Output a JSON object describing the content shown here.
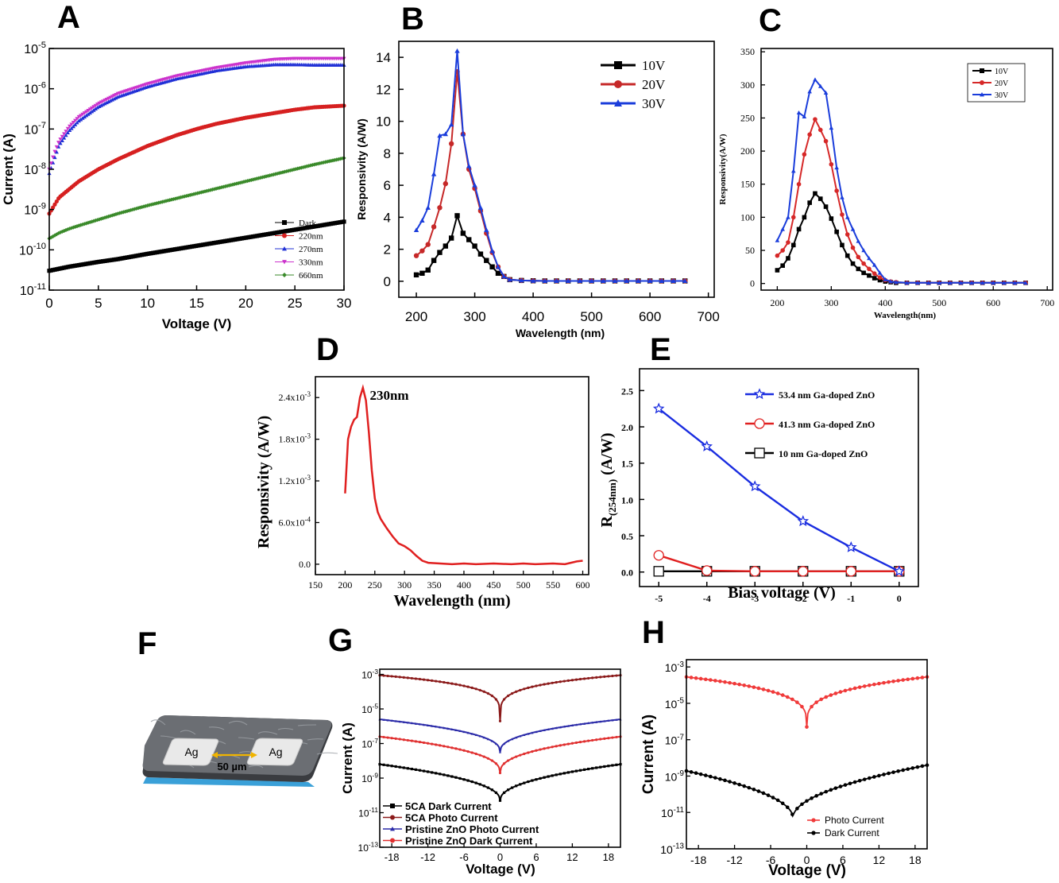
{
  "panel_labels": [
    "A",
    "B",
    "C",
    "D",
    "E",
    "F",
    "G",
    "H"
  ],
  "chart_data": [
    {
      "id": "A",
      "type": "scatter",
      "xlabel": "Voltage (V)",
      "ylabel": "Current (A)",
      "xlim": [
        0,
        30
      ],
      "ylim_log10": [
        -11,
        -5
      ],
      "y_log": true,
      "xticks": [
        "0",
        "5",
        "10",
        "15",
        "20",
        "25",
        "30"
      ],
      "yticks": [
        {
          "base": "10",
          "exp": "-11"
        },
        {
          "base": "10",
          "exp": "-10"
        },
        {
          "base": "10",
          "exp": "-9"
        },
        {
          "base": "10",
          "exp": "-8"
        },
        {
          "base": "10",
          "exp": "-7"
        },
        {
          "base": "10",
          "exp": "-6"
        },
        {
          "base": "10",
          "exp": "-5"
        }
      ],
      "legend_position": "bottom-right",
      "series": [
        {
          "name": "Dark",
          "color": "#000000",
          "marker": "square",
          "x": [
            0,
            1,
            2,
            3,
            5,
            7,
            10,
            13,
            15,
            17,
            20,
            23,
            25,
            27,
            30
          ],
          "log10y": [
            -10.52,
            -10.47,
            -10.42,
            -10.38,
            -10.3,
            -10.23,
            -10.1,
            -9.98,
            -9.9,
            -9.82,
            -9.7,
            -9.58,
            -9.5,
            -9.42,
            -9.3
          ]
        },
        {
          "name": "220nm",
          "color": "#d62020",
          "marker": "circle",
          "x": [
            0,
            0.5,
            1,
            2,
            3,
            5,
            7,
            10,
            13,
            15,
            17,
            20,
            23,
            25,
            27,
            30
          ],
          "log10y": [
            -9.1,
            -8.9,
            -8.7,
            -8.5,
            -8.3,
            -8.0,
            -7.75,
            -7.42,
            -7.15,
            -7.0,
            -6.87,
            -6.72,
            -6.6,
            -6.52,
            -6.46,
            -6.42
          ]
        },
        {
          "name": "270nm",
          "color": "#2030d6",
          "marker": "triangle-up",
          "x": [
            0,
            0.5,
            1,
            2,
            3,
            5,
            7,
            10,
            13,
            15,
            17,
            20,
            23,
            25,
            27,
            30
          ],
          "log10y": [
            -8.1,
            -7.75,
            -7.4,
            -7.05,
            -6.8,
            -6.45,
            -6.2,
            -5.95,
            -5.75,
            -5.65,
            -5.55,
            -5.45,
            -5.4,
            -5.4,
            -5.41,
            -5.41
          ]
        },
        {
          "name": "330nm",
          "color": "#cc33cc",
          "marker": "triangle-down",
          "x": [
            0,
            0.5,
            1,
            2,
            3,
            5,
            7,
            10,
            13,
            15,
            17,
            20,
            23,
            25,
            27,
            30
          ],
          "log10y": [
            -8.0,
            -7.6,
            -7.3,
            -6.95,
            -6.7,
            -6.37,
            -6.12,
            -5.88,
            -5.68,
            -5.58,
            -5.48,
            -5.36,
            -5.27,
            -5.25,
            -5.25,
            -5.25
          ]
        },
        {
          "name": "660nm",
          "color": "#3a8a2a",
          "marker": "diamond",
          "x": [
            0,
            1,
            2,
            3,
            5,
            7,
            10,
            13,
            15,
            17,
            20,
            23,
            25,
            27,
            30
          ],
          "log10y": [
            -9.72,
            -9.58,
            -9.48,
            -9.4,
            -9.25,
            -9.1,
            -8.9,
            -8.72,
            -8.6,
            -8.48,
            -8.3,
            -8.12,
            -8.0,
            -7.88,
            -7.72
          ]
        }
      ]
    },
    {
      "id": "B",
      "type": "line",
      "xlabel": "Wavelength (nm)",
      "ylabel": "Responsivity (A/W)",
      "xlim": [
        170,
        710
      ],
      "ylim": [
        -1,
        15
      ],
      "xticks": [
        200,
        300,
        400,
        500,
        600,
        700
      ],
      "yticks": [
        0,
        2,
        4,
        6,
        8,
        10,
        12,
        14
      ],
      "legend_position": "top-right",
      "x": [
        200,
        210,
        220,
        230,
        240,
        250,
        260,
        270,
        280,
        290,
        300,
        310,
        320,
        330,
        340,
        350,
        360,
        380,
        400,
        420,
        440,
        460,
        480,
        500,
        520,
        540,
        560,
        580,
        600,
        620,
        640,
        660
      ],
      "series": [
        {
          "name": "10V",
          "color": "#000000",
          "marker": "square",
          "values": [
            0.4,
            0.5,
            0.7,
            1.3,
            1.8,
            2.2,
            2.7,
            4.1,
            3.0,
            2.6,
            2.2,
            1.7,
            1.3,
            0.9,
            0.5,
            0.3,
            0.1,
            0.05,
            0.03,
            0.02,
            0.02,
            0.02,
            0.02,
            0.02,
            0.02,
            0.02,
            0.02,
            0.02,
            0.02,
            0.02,
            0.02,
            0.02
          ]
        },
        {
          "name": "20V",
          "color": "#c62828",
          "marker": "circle",
          "values": [
            1.6,
            1.9,
            2.3,
            3.4,
            4.6,
            6.1,
            8.6,
            13.1,
            9.2,
            7.0,
            5.8,
            4.4,
            3.0,
            1.8,
            0.9,
            0.3,
            0.1,
            0.05,
            0.03,
            0.02,
            0.02,
            0.02,
            0.02,
            0.02,
            0.02,
            0.02,
            0.02,
            0.02,
            0.02,
            0.02,
            0.02,
            0.02
          ]
        },
        {
          "name": "30V",
          "color": "#1a3ddb",
          "marker": "triangle-up",
          "values": [
            3.2,
            3.8,
            4.6,
            6.7,
            9.1,
            9.2,
            9.8,
            14.4,
            9.2,
            7.2,
            6.0,
            4.6,
            3.2,
            1.9,
            0.9,
            0.3,
            0.1,
            0.05,
            0.03,
            0.02,
            0.02,
            0.02,
            0.02,
            0.02,
            0.02,
            0.02,
            0.02,
            0.02,
            0.02,
            0.02,
            0.02,
            0.02
          ]
        }
      ]
    },
    {
      "id": "C",
      "type": "line",
      "xlabel": "Wavelength(nm)",
      "ylabel": "Responsivity(A/W)",
      "xlim": [
        170,
        710
      ],
      "ylim": [
        -10,
        355
      ],
      "xticks": [
        200,
        300,
        400,
        500,
        600,
        700
      ],
      "yticks": [
        0,
        50,
        100,
        150,
        200,
        250,
        300,
        350
      ],
      "legend_position": "top-right",
      "x": [
        200,
        210,
        220,
        230,
        240,
        250,
        260,
        270,
        280,
        290,
        300,
        310,
        320,
        330,
        340,
        350,
        360,
        370,
        380,
        390,
        400,
        410,
        420,
        440,
        460,
        480,
        500,
        520,
        540,
        560,
        580,
        600,
        620,
        640,
        660
      ],
      "series": [
        {
          "name": "10V",
          "color": "#000000",
          "marker": "square",
          "values": [
            20,
            27,
            38,
            58,
            82,
            100,
            122,
            136,
            128,
            116,
            98,
            78,
            58,
            42,
            30,
            22,
            16,
            12,
            8,
            5,
            3,
            2,
            1,
            1,
            1,
            1,
            1,
            1,
            1,
            1,
            1,
            1,
            1,
            1,
            1
          ]
        },
        {
          "name": "20V",
          "color": "#d62828",
          "marker": "circle",
          "values": [
            42,
            50,
            62,
            100,
            150,
            195,
            225,
            248,
            232,
            215,
            180,
            140,
            104,
            74,
            54,
            40,
            30,
            22,
            15,
            9,
            5,
            3,
            2,
            1,
            1,
            1,
            1,
            1,
            1,
            1,
            1,
            1,
            1,
            1,
            1
          ]
        },
        {
          "name": "30V",
          "color": "#1a3ddb",
          "marker": "triangle-up",
          "values": [
            65,
            82,
            100,
            170,
            258,
            252,
            290,
            308,
            298,
            288,
            235,
            175,
            130,
            100,
            82,
            64,
            50,
            38,
            28,
            16,
            6,
            3,
            2,
            1,
            1,
            1,
            1,
            1,
            1,
            1,
            1,
            1,
            1,
            1,
            1
          ]
        }
      ]
    },
    {
      "id": "D",
      "type": "line",
      "xlabel": "Wavelength (nm)",
      "ylabel": "Responsivity (A/W)",
      "xlim": [
        150,
        610
      ],
      "ylim": [
        -0.00015,
        0.0027
      ],
      "xticks": [
        150,
        200,
        250,
        300,
        350,
        400,
        450,
        500,
        550,
        600
      ],
      "yticks": [
        0,
        0.0006,
        0.0012,
        0.0018,
        0.0024
      ],
      "ytick_labels": [
        "0.0",
        "6.0x10",
        "1.2x10",
        "1.8x10",
        "2.4x10"
      ],
      "ytick_exps": [
        "",
        "-4",
        "-3",
        "-3",
        "-3"
      ],
      "annotation": "230nm",
      "series": [
        {
          "color": "#e02020",
          "x": [
            200,
            205,
            210,
            215,
            220,
            225,
            230,
            235,
            240,
            245,
            250,
            255,
            260,
            270,
            280,
            290,
            300,
            310,
            320,
            330,
            340,
            360,
            380,
            400,
            420,
            450,
            480,
            500,
            520,
            550,
            570,
            580,
            590,
            600
          ],
          "values": [
            0.00102,
            0.0018,
            0.00198,
            0.00208,
            0.00212,
            0.0024,
            0.00254,
            0.00236,
            0.0019,
            0.00135,
            0.00095,
            0.00075,
            0.00065,
            0.00052,
            0.0004,
            0.0003,
            0.00026,
            0.0002,
            0.00012,
            5e-05,
            2e-05,
            1e-05,
            0.0,
            1e-05,
            0.0,
            1e-05,
            0.0,
            1e-05,
            0.0,
            1e-05,
            0.0,
            2e-05,
            4e-05,
            5e-05
          ]
        }
      ]
    },
    {
      "id": "E",
      "type": "line",
      "xlabel": "Bias voltage (V)",
      "ylabel_main": "R",
      "ylabel_sub": "(254nm)",
      "ylabel_unit": "(A/W)",
      "xlim": [
        -5.4,
        0.4
      ],
      "ylim": [
        -0.2,
        2.8
      ],
      "xticks": [
        -5,
        -4,
        -3,
        -2,
        -1,
        0
      ],
      "yticks": [
        0.0,
        0.5,
        1.0,
        1.5,
        2.0,
        2.5
      ],
      "legend_position": "top-right",
      "x": [
        -5,
        -4,
        -3,
        -2,
        -1,
        0
      ],
      "series": [
        {
          "name": "53.4 nm Ga-doped ZnO",
          "color": "#1a2de0",
          "marker": "star",
          "values": [
            2.25,
            1.73,
            1.18,
            0.7,
            0.34,
            0.01
          ]
        },
        {
          "name": "41.3 nm Ga-doped ZnO",
          "color": "#e02020",
          "marker": "circle-open",
          "values": [
            0.23,
            0.02,
            0.01,
            0.01,
            0.01,
            0.01
          ]
        },
        {
          "name": "10 nm Ga-doped ZnO",
          "color": "#000000",
          "marker": "square-open",
          "values": [
            0.01,
            0.01,
            0.01,
            0.01,
            0.01,
            0.01
          ]
        }
      ]
    },
    {
      "id": "G",
      "type": "line",
      "xlabel": "Voltage (V)",
      "ylabel": "Current (A)",
      "xlim": [
        -20,
        20
      ],
      "ylim_log10": [
        -13,
        -2.7
      ],
      "y_log": true,
      "xticks": [
        "-18",
        "-12",
        "-6",
        "0",
        "6",
        "12",
        "18"
      ],
      "yticks": [
        {
          "base": "10",
          "exp": "-13"
        },
        {
          "base": "10",
          "exp": "-11"
        },
        {
          "base": "10",
          "exp": "-9"
        },
        {
          "base": "10",
          "exp": "-7"
        },
        {
          "base": "10",
          "exp": "-5"
        },
        {
          "base": "10",
          "exp": "-3"
        }
      ],
      "legend_position": "bottom-left",
      "series": [
        {
          "name": "5CA Dark Current",
          "color": "#000000",
          "marker": "square",
          "log10y_at_ends": -8.2,
          "log10y_at_center": -10.3,
          "sharpness": 0.45
        },
        {
          "name": "5CA Photo Current",
          "color": "#8b1a1a",
          "marker": "circle",
          "log10y_at_ends": -3.05,
          "log10y_at_center": -5.7,
          "sharpness": 0.22
        },
        {
          "name": "Pristine ZnO Photo Current",
          "color": "#2a2aa8",
          "marker": "triangle-up",
          "log10y_at_ends": -5.6,
          "log10y_at_center": -7.5,
          "sharpness": 0.4
        },
        {
          "name": "Pristine ZnO Dark Current",
          "color": "#e03030",
          "marker": "circle",
          "log10y_at_ends": -6.6,
          "log10y_at_center": -8.7,
          "sharpness": 0.4
        }
      ]
    },
    {
      "id": "H",
      "type": "line",
      "xlabel": "Voltage (V)",
      "ylabel": "Current (A)",
      "xlim": [
        -20,
        20
      ],
      "ylim_log10": [
        -13,
        -2.6
      ],
      "y_log": true,
      "xticks": [
        "-18",
        "-12",
        "-6",
        "0",
        "6",
        "12",
        "18"
      ],
      "yticks": [
        {
          "base": "10",
          "exp": "-13"
        },
        {
          "base": "10",
          "exp": "-11"
        },
        {
          "base": "10",
          "exp": "-9"
        },
        {
          "base": "10",
          "exp": "-7"
        },
        {
          "base": "10",
          "exp": "-5"
        },
        {
          "base": "10",
          "exp": "-3"
        }
      ],
      "legend_position": "bottom-right",
      "series": [
        {
          "name": "Photo Current",
          "color": "#f03a3a",
          "marker": "circle",
          "center_x": 0,
          "log10y_at_ends": -3.55,
          "log10y_at_center": -6.3,
          "sharpness": 0.28
        },
        {
          "name": "Dark Current",
          "color": "#000000",
          "marker": "circle",
          "center_x": -2.3,
          "log10y_at_ends": -8.4,
          "log10y_at_center": -11.3,
          "sharpness": 0.5
        }
      ]
    }
  ],
  "diagram_F": {
    "electrode_labels": [
      "Ag",
      "Ag"
    ],
    "scale_label": "50 µm",
    "colors": {
      "substrate_top": "#6b6e73",
      "substrate_edge": "#3a3c40",
      "substrate_base": "#3aa0d8",
      "electrode": "#e9e9e9",
      "scale_arrow": "#f0b400"
    }
  }
}
